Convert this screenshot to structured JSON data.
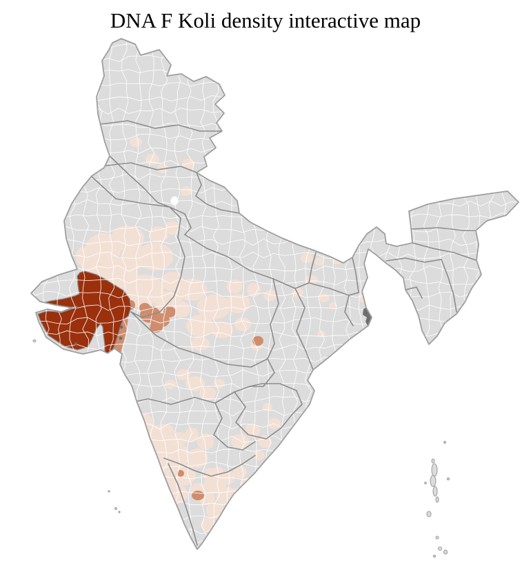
{
  "title": "DNA F Koli density interactive map",
  "map": {
    "label": "India district-level choropleth of DNA F Koli density",
    "background": "#ffffff",
    "colors": {
      "district_default": "#dcdcdc",
      "district_border": "#ffffff",
      "state_border": "#8b8b8b",
      "coast_outline": "#9e9e9e",
      "density_high": "#9b300d",
      "density_medium": "#cf8d6d",
      "density_low": "#f3e0d5",
      "highlight_white": "#fdfdfd",
      "delta_marker": "#6e6e6e"
    },
    "density_scale": {
      "levels": [
        "none",
        "low",
        "medium",
        "high"
      ],
      "level_colors": [
        "#dcdcdc",
        "#f3e0d5",
        "#cf8d6d",
        "#9b300d"
      ]
    },
    "regions_depicted": [
      {
        "area": "Gujarat (Kachchh, Saurashtra, mainland Gujarat districts)",
        "density": "high"
      },
      {
        "area": "West Madhya Pradesh cluster adjoining Gujarat",
        "density": "medium"
      },
      {
        "area": "South Gujarat coastal strip",
        "density": "medium"
      },
      {
        "area": "Rajasthan (most districts)",
        "density": "low"
      },
      {
        "area": "West and central Madhya Pradesh",
        "density": "low"
      },
      {
        "area": "Karnataka (most districts)",
        "density": "low"
      },
      {
        "area": "Tamil Nadu (most districts)",
        "density": "low"
      },
      {
        "area": "Scattered districts in Punjab, Uttarakhand, west UP, Bihar, Maharashtra, Andhra Pradesh",
        "density": "low"
      },
      {
        "area": "Two isolated southern districts (Karnataka/Tamil Nadu border)",
        "density": "medium"
      },
      {
        "area": "All remaining districts incl. north, east and northeast India",
        "density": "none"
      }
    ]
  }
}
